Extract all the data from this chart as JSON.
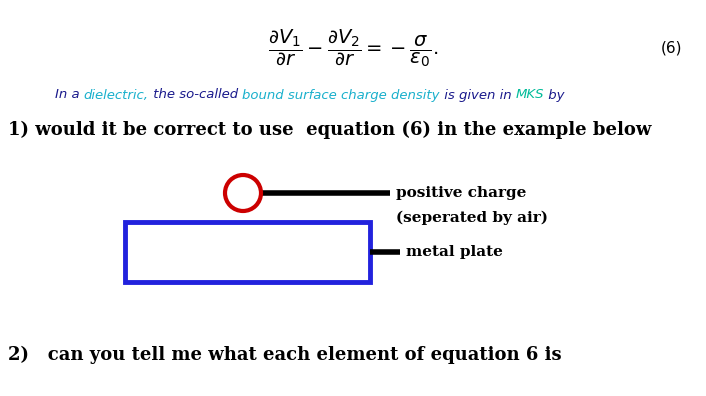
{
  "bg_color": "#ffffff",
  "equation_latex": "$\\dfrac{\\partial V_1}{\\partial r} - \\dfrac{\\partial V_2}{\\partial r} = -\\dfrac{\\sigma}{\\epsilon_0}.$",
  "eq_number": "(6)",
  "colored_text_pieces": [
    [
      "In a ",
      "#1a1a8c"
    ],
    [
      "dielectric,",
      "#1ab0cc"
    ],
    [
      " the so-called ",
      "#1a1a8c"
    ],
    [
      "bound surface charge density",
      "#1ab0cc"
    ],
    [
      " is given in ",
      "#1a1a8c"
    ],
    [
      "MKS",
      "#00bb99"
    ],
    [
      " by",
      "#1a1a8c"
    ]
  ],
  "q1_text": "1) would it be correct to use  equation (6) in the example below",
  "q2_text": "2)   can you tell me what each element of equation 6 is",
  "label_positive": "positive charge",
  "label_separated": "(seperated by air)",
  "label_metal": "metal plate",
  "circle_color": "#cc0000",
  "rect_color": "#2222dd",
  "line_color": "#000000"
}
